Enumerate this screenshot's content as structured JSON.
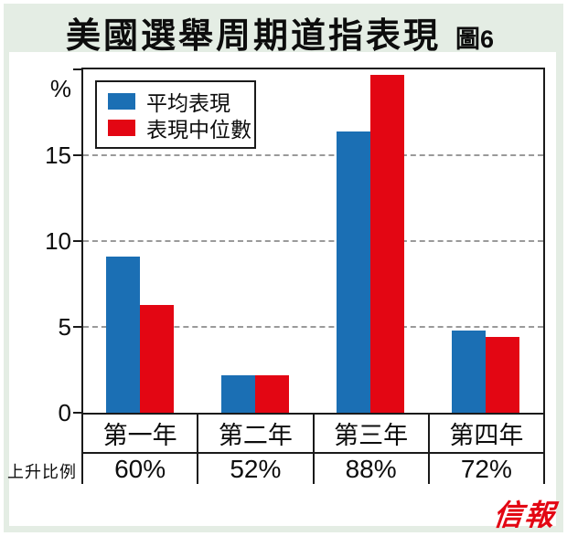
{
  "header": {
    "title": "美國選舉周期道指表現",
    "figure_label": "圖6"
  },
  "chart_data": {
    "type": "bar",
    "title": "美國選舉周期道指表現",
    "ylabel": "%",
    "ylim": [
      0,
      20
    ],
    "yticks": [
      0,
      5,
      10,
      15
    ],
    "grid": "horizontal-dashed",
    "legend_position": "top-left",
    "categories": [
      "第一年",
      "第二年",
      "第三年",
      "第四年"
    ],
    "series": [
      {
        "name": "平均表現",
        "color": "#1b6fb4",
        "values": [
          9.1,
          2.2,
          16.4,
          4.8
        ]
      },
      {
        "name": "表現中位數",
        "color": "#e30613",
        "values": [
          6.3,
          2.2,
          19.7,
          4.4
        ]
      }
    ],
    "footer_row": {
      "label": "上升比例",
      "values": [
        "60%",
        "52%",
        "88%",
        "72%"
      ]
    }
  },
  "branding": {
    "logo_text": "信報",
    "color": "#e30613"
  },
  "colors": {
    "frame_background": "#e4ede4",
    "card_background": "#ffffff",
    "gridline": "#9a9a9a",
    "border": "#1a1a1a",
    "series_blue": "#1b6fb4",
    "series_red": "#e30613"
  }
}
